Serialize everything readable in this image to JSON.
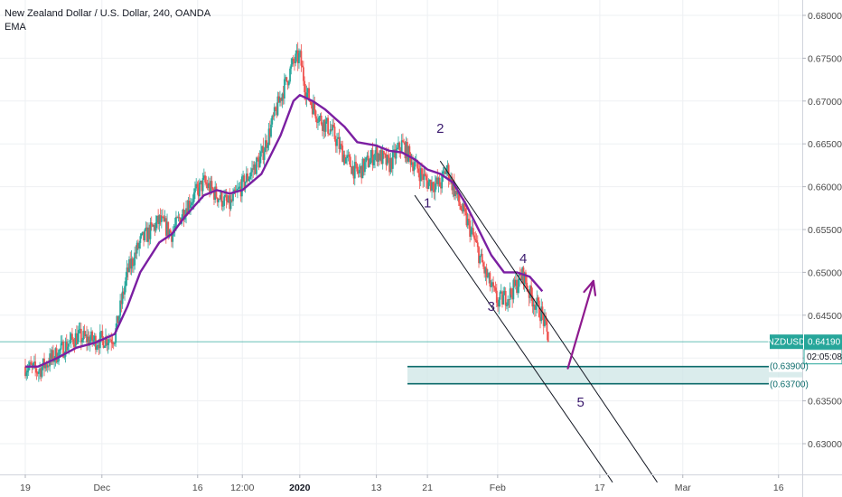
{
  "header": {
    "title": "New Zealand Dollar / U.S. Dollar, 240, OANDA",
    "indicator": "EMA"
  },
  "colors": {
    "up": "#26a69a",
    "down": "#ef5350",
    "ema": "#7b1fa2",
    "zone_fill": "#cde6e6",
    "zone_line": "#0c6b6b",
    "price_line": "#26a69a",
    "annotation": "#3b1a6e",
    "arrow": "#8e1a8e"
  },
  "price_tag": {
    "symbol": "NZDUSD",
    "price": "0.64190",
    "countdown": "02:05:08"
  },
  "zone": {
    "top": 0.639,
    "bottom": 0.637,
    "top_label": "(0.63900)",
    "bottom_label": "(0.63700)"
  },
  "wave_labels": [
    {
      "text": "1",
      "date": "2020-01-21",
      "price": 0.6576
    },
    {
      "text": "2",
      "date": "2020-01-23",
      "price": 0.6663
    },
    {
      "text": "4",
      "date": "2020-02-05",
      "price": 0.6511
    },
    {
      "text": "3",
      "date": "2020-01-31",
      "price": 0.6455
    },
    {
      "text": "5",
      "date": "2020-02-14",
      "price": 0.6343
    }
  ],
  "chart_data": {
    "type": "candlestick",
    "series_name": "NZDUSD",
    "indicator": "EMA",
    "x_axis": {
      "range": [
        "2019-11-19",
        "2020-03-20"
      ],
      "ticks": [
        {
          "date": "2019-11-19",
          "label": "19"
        },
        {
          "date": "2019-12-01",
          "label": "Dec"
        },
        {
          "date": "2019-12-16",
          "label": "16"
        },
        {
          "date": "2019-12-23",
          "label": "12:00"
        },
        {
          "date": "2020-01-01",
          "label": "2020"
        },
        {
          "date": "2020-01-13",
          "label": "13"
        },
        {
          "date": "2020-01-21",
          "label": "21"
        },
        {
          "date": "2020-02-01",
          "label": "Feb"
        },
        {
          "date": "2020-02-17",
          "label": "17"
        },
        {
          "date": "2020-03-01",
          "label": "Mar"
        },
        {
          "date": "2020-03-16",
          "label": "16"
        }
      ]
    },
    "y_axis": {
      "range": [
        0.6265,
        0.6815
      ],
      "ticks": [
        "0.68000",
        "0.67500",
        "0.67000",
        "0.66500",
        "0.66000",
        "0.65500",
        "0.65000",
        "0.64500",
        "0.64000",
        "0.63500",
        "0.63000"
      ]
    },
    "price_path": [
      [
        "2019-11-19",
        0.639
      ],
      [
        "2019-11-21",
        0.6385
      ],
      [
        "2019-11-24",
        0.6405
      ],
      [
        "2019-11-27",
        0.6425
      ],
      [
        "2019-11-30",
        0.642
      ],
      [
        "2019-12-03",
        0.6425
      ],
      [
        "2019-12-05",
        0.65
      ],
      [
        "2019-12-07",
        0.6535
      ],
      [
        "2019-12-10",
        0.656
      ],
      [
        "2019-12-12",
        0.6545
      ],
      [
        "2019-12-14",
        0.6575
      ],
      [
        "2019-12-17",
        0.6605
      ],
      [
        "2019-12-19",
        0.659
      ],
      [
        "2019-12-21",
        0.6578
      ],
      [
        "2019-12-23",
        0.6602
      ],
      [
        "2019-12-26",
        0.6635
      ],
      [
        "2019-12-29",
        0.6705
      ],
      [
        "2019-12-31",
        0.6745
      ],
      [
        "2020-01-01",
        0.6752
      ],
      [
        "2020-01-02",
        0.671
      ],
      [
        "2020-01-04",
        0.668
      ],
      [
        "2020-01-06",
        0.6665
      ],
      [
        "2020-01-08",
        0.6635
      ],
      [
        "2020-01-10",
        0.6615
      ],
      [
        "2020-01-13",
        0.664
      ],
      [
        "2020-01-15",
        0.6625
      ],
      [
        "2020-01-17",
        0.665
      ],
      [
        "2020-01-19",
        0.6625
      ],
      [
        "2020-01-21",
        0.6605
      ],
      [
        "2020-01-23",
        0.6602
      ],
      [
        "2020-01-24",
        0.6622
      ],
      [
        "2020-01-26",
        0.658
      ],
      [
        "2020-01-28",
        0.6545
      ],
      [
        "2020-01-30",
        0.65
      ],
      [
        "2020-02-01",
        0.6465
      ],
      [
        "2020-02-03",
        0.6475
      ],
      [
        "2020-02-05",
        0.6498
      ],
      [
        "2020-02-06",
        0.6475
      ],
      [
        "2020-02-08",
        0.645
      ],
      [
        "2020-02-09",
        0.6419
      ]
    ],
    "ema": [
      [
        "2019-11-19",
        0.639
      ],
      [
        "2019-11-21",
        0.639
      ],
      [
        "2019-11-24",
        0.64
      ],
      [
        "2019-11-27",
        0.6412
      ],
      [
        "2019-11-30",
        0.6418
      ],
      [
        "2019-12-03",
        0.6428
      ],
      [
        "2019-12-05",
        0.646
      ],
      [
        "2019-12-07",
        0.65
      ],
      [
        "2019-12-10",
        0.6535
      ],
      [
        "2019-12-12",
        0.6545
      ],
      [
        "2019-12-14",
        0.6565
      ],
      [
        "2019-12-17",
        0.659
      ],
      [
        "2019-12-19",
        0.6596
      ],
      [
        "2019-12-21",
        0.6592
      ],
      [
        "2019-12-23",
        0.6596
      ],
      [
        "2019-12-26",
        0.6615
      ],
      [
        "2019-12-29",
        0.666
      ],
      [
        "2019-12-31",
        0.67
      ],
      [
        "2020-01-01",
        0.6707
      ],
      [
        "2020-01-03",
        0.67
      ],
      [
        "2020-01-05",
        0.669
      ],
      [
        "2020-01-08",
        0.667
      ],
      [
        "2020-01-10",
        0.6652
      ],
      [
        "2020-01-13",
        0.6648
      ],
      [
        "2020-01-15",
        0.6642
      ],
      [
        "2020-01-17",
        0.664
      ],
      [
        "2020-01-19",
        0.6632
      ],
      [
        "2020-01-21",
        0.662
      ],
      [
        "2020-01-23",
        0.6615
      ],
      [
        "2020-01-25",
        0.6605
      ],
      [
        "2020-01-27",
        0.658
      ],
      [
        "2020-01-29",
        0.655
      ],
      [
        "2020-01-31",
        0.652
      ],
      [
        "2020-02-02",
        0.65
      ],
      [
        "2020-02-04",
        0.65
      ],
      [
        "2020-02-06",
        0.6495
      ],
      [
        "2020-02-08",
        0.6478
      ]
    ],
    "channel_lines": [
      {
        "from": [
          "2020-01-23",
          0.663
        ],
        "to": [
          "2020-02-26",
          0.6255
        ]
      },
      {
        "from": [
          "2020-01-19",
          0.659
        ],
        "to": [
          "2020-02-19",
          0.6255
        ]
      }
    ],
    "arrow": {
      "from": [
        "2020-02-12",
        0.6388
      ],
      "to": [
        "2020-02-16",
        0.649
      ]
    }
  }
}
